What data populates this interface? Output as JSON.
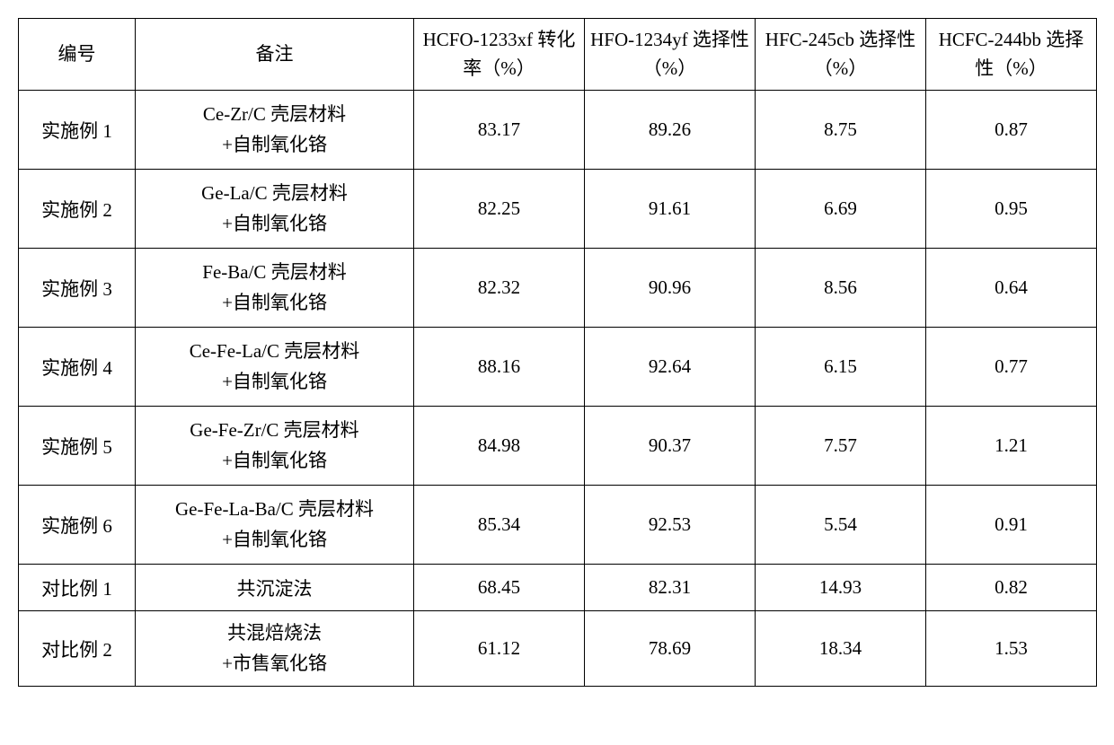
{
  "table": {
    "columns": [
      {
        "key": "id",
        "label": "编号",
        "width_class": "col-id"
      },
      {
        "key": "remark",
        "label": "备注",
        "width_class": "col-remark"
      },
      {
        "key": "hcfo",
        "label": "HCFO-1233xf 转化率（%）",
        "width_class": "col-data"
      },
      {
        "key": "hfo",
        "label": "HFO-1234yf 选择性（%）",
        "width_class": "col-data"
      },
      {
        "key": "hfc",
        "label": "HFC-245cb 选择性（%）",
        "width_class": "col-data"
      },
      {
        "key": "hcfc",
        "label": "HCFC-244bb 选择性（%）",
        "width_class": "col-data"
      }
    ],
    "rows": [
      {
        "row_class": "data-row-tall",
        "id": "实施例 1",
        "remark_line1": "Ce-Zr/C 壳层材料",
        "remark_line2": "+自制氧化铬",
        "hcfo": "83.17",
        "hfo": "89.26",
        "hfc": "8.75",
        "hcfc": "0.87"
      },
      {
        "row_class": "data-row-tall",
        "id": "实施例 2",
        "remark_line1": "Ge-La/C 壳层材料",
        "remark_line2": "+自制氧化铬",
        "hcfo": "82.25",
        "hfo": "91.61",
        "hfc": "6.69",
        "hcfc": "0.95"
      },
      {
        "row_class": "data-row-tall",
        "id": "实施例 3",
        "remark_line1": "Fe-Ba/C 壳层材料",
        "remark_line2": "+自制氧化铬",
        "hcfo": "82.32",
        "hfo": "90.96",
        "hfc": "8.56",
        "hcfc": "0.64"
      },
      {
        "row_class": "data-row-tall",
        "id": "实施例 4",
        "remark_line1": "Ce-Fe-La/C 壳层材料",
        "remark_line2": "+自制氧化铬",
        "hcfo": "88.16",
        "hfo": "92.64",
        "hfc": "6.15",
        "hcfc": "0.77"
      },
      {
        "row_class": "data-row-tall",
        "id": "实施例 5",
        "remark_line1": "Ge-Fe-Zr/C 壳层材料",
        "remark_line2": "+自制氧化铬",
        "hcfo": "84.98",
        "hfo": "90.37",
        "hfc": "7.57",
        "hcfc": "1.21"
      },
      {
        "row_class": "data-row-tall",
        "id": "实施例 6",
        "remark_line1": "Ge-Fe-La-Ba/C 壳层材料",
        "remark_line2": "+自制氧化铬",
        "hcfo": "85.34",
        "hfo": "92.53",
        "hfc": "5.54",
        "hcfc": "0.91"
      },
      {
        "row_class": "data-row-short",
        "id": "对比例 1",
        "remark_line1": "共沉淀法",
        "remark_line2": "",
        "hcfo": "68.45",
        "hfo": "82.31",
        "hfc": "14.93",
        "hcfc": "0.82"
      },
      {
        "row_class": "data-row-med",
        "id": "对比例 2",
        "remark_line1": "共混焙烧法",
        "remark_line2": "+市售氧化铬",
        "hcfo": "61.12",
        "hfo": "78.69",
        "hfc": "18.34",
        "hcfc": "1.53"
      }
    ],
    "border_color": "#000000",
    "background_color": "#ffffff",
    "text_color": "#000000",
    "font_size": 21
  }
}
